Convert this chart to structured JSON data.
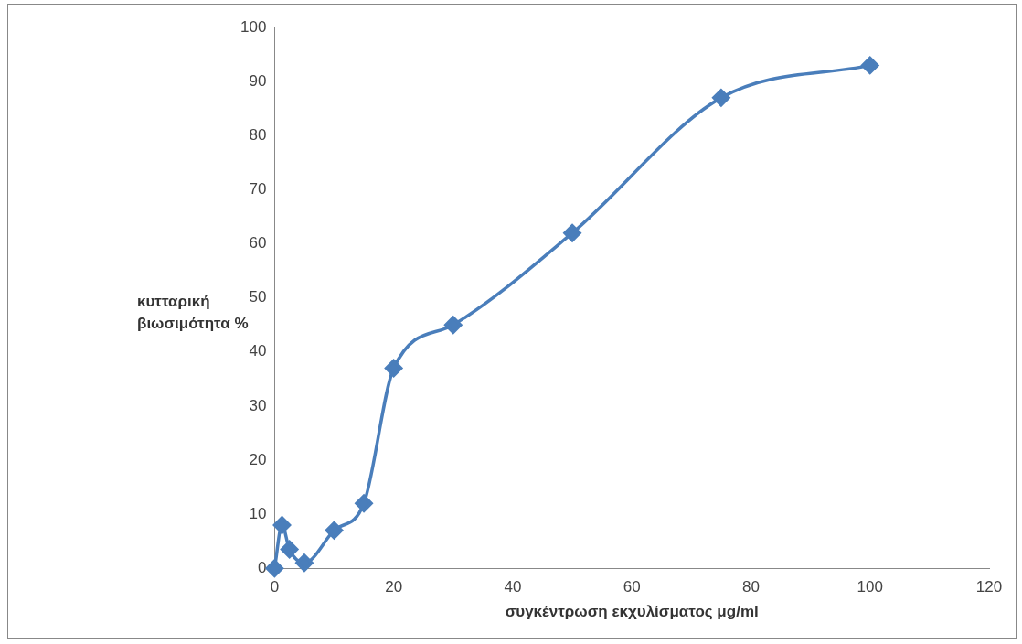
{
  "chart_data": {
    "type": "line",
    "xlabel": "συγκέντρωση εκχυλίσματος μg/ml",
    "ylabel": "κυτταρική βιωσιμότητα %",
    "x": [
      0,
      1.25,
      2.5,
      5,
      10,
      15,
      20,
      30,
      50,
      75,
      100
    ],
    "series": [
      {
        "color": "#4a7ebb",
        "values": [
          0,
          8,
          3.5,
          1,
          7,
          12,
          37,
          45,
          62,
          87,
          93
        ]
      }
    ],
    "xlim": [
      0,
      120
    ],
    "xticks": [
      0,
      20,
      40,
      60,
      80,
      100,
      120
    ],
    "ylim": [
      0,
      100
    ],
    "yticks": [
      0,
      10,
      20,
      30,
      40,
      50,
      60,
      70,
      80,
      90,
      100
    ],
    "grid": false,
    "legend": false,
    "marker": "diamond",
    "line_style": "solid"
  }
}
